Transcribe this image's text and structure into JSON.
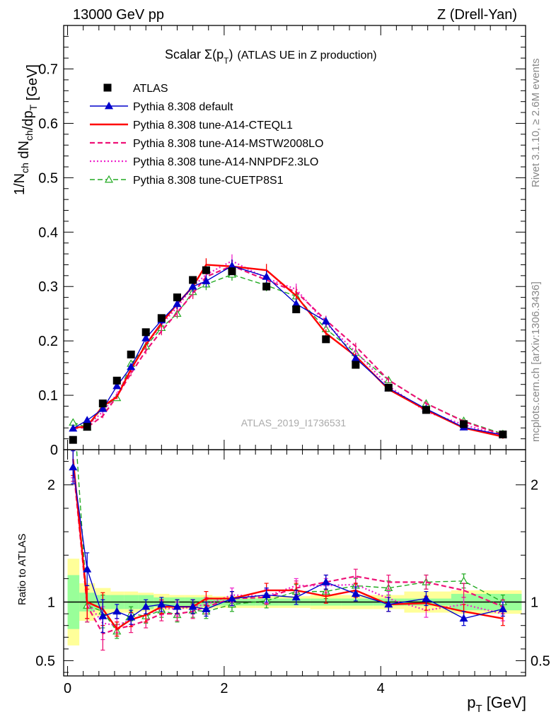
{
  "header": {
    "left": "13000 GeV pp",
    "right": "Z (Drell-Yan)"
  },
  "title": {
    "main": "Scalar Σ(p",
    "sub": "T",
    "close": ")",
    "rest": "(ATLAS UE in Z production)"
  },
  "side_labels": {
    "rivet": "Rivet 3.1.10, ≥ 2.6M events",
    "mcplots": "mcplots.cern.ch [arXiv:1306.3436]"
  },
  "watermark": "ATLAS_2019_I1736531",
  "axes": {
    "ylabel_main": "1/N_ch dN_ch/dp_T [GeV]",
    "ylabel_ratio": "Ratio to ATLAS",
    "xlabel": "p_T [GeV]"
  },
  "colors": {
    "data": "#000000",
    "default": "#0000cc",
    "cteql1": "#ff0000",
    "mstw": "#ee1177",
    "nnpdf": "#ee22cc",
    "cuetp": "#22aa22",
    "band_inner": "#99ff99",
    "band_outer": "#ffff99"
  },
  "chart_data": {
    "type": "line",
    "xlim": [
      -0.05,
      5.85
    ],
    "main": {
      "ylim": [
        0,
        0.78
      ],
      "yticks": [
        0,
        0.1,
        0.2,
        0.3,
        0.4,
        0.5,
        0.6,
        0.7
      ],
      "ytick_labels": [
        "0",
        "0.1",
        "0.2",
        "0.3",
        "0.4",
        "0.5",
        "0.6",
        "0.7"
      ]
    },
    "ratio": {
      "ylim": [
        0.37,
        2.3
      ],
      "yticks": [
        0.5,
        1,
        2
      ],
      "ytick_labels": [
        "0.5",
        "1",
        "2"
      ]
    },
    "xticks": [
      0,
      2,
      4
    ],
    "xtick_labels": [
      "0",
      "2",
      "4"
    ],
    "bin_edges": [
      0.0,
      0.15,
      0.35,
      0.55,
      0.72,
      0.9,
      1.1,
      1.3,
      1.5,
      1.7,
      1.85,
      2.4,
      2.7,
      3.1,
      3.5,
      3.9,
      4.3,
      4.9,
      5.3,
      5.8
    ],
    "x": [
      0.07,
      0.25,
      0.45,
      0.63,
      0.81,
      1.0,
      1.2,
      1.4,
      1.6,
      1.77,
      2.1,
      2.54,
      2.92,
      3.3,
      3.68,
      4.1,
      4.58,
      5.06,
      5.56
    ],
    "data_series": {
      "name": "ATLAS",
      "values": [
        0.018,
        0.042,
        0.085,
        0.127,
        0.175,
        0.216,
        0.242,
        0.28,
        0.312,
        0.33,
        0.328,
        0.3,
        0.258,
        0.203,
        0.156,
        0.114,
        0.073,
        0.047,
        0.028
      ]
    },
    "series": [
      {
        "name": "Pythia 8.308 default",
        "key": "default",
        "style": "solid",
        "marker": "triangle-filled",
        "values": [
          0.039,
          0.054,
          0.075,
          0.117,
          0.152,
          0.205,
          0.238,
          0.268,
          0.3,
          0.31,
          0.338,
          0.318,
          0.268,
          0.236,
          0.168,
          0.113,
          0.075,
          0.041,
          0.027
        ]
      },
      {
        "name": "Pythia 8.308 tune-A14-CTEQL1",
        "key": "cteql1",
        "style": "solid",
        "marker": "none",
        "values": [
          0.04,
          0.043,
          0.08,
          0.097,
          0.148,
          0.193,
          0.233,
          0.268,
          0.3,
          0.34,
          0.337,
          0.33,
          0.283,
          0.214,
          0.172,
          0.111,
          0.073,
          0.04,
          0.024
        ]
      },
      {
        "name": "Pythia 8.308 tune-A14-MSTW2008LO",
        "key": "mstw",
        "style": "dashed",
        "marker": "none",
        "values": [
          0.039,
          0.041,
          0.062,
          0.098,
          0.14,
          0.182,
          0.218,
          0.252,
          0.287,
          0.318,
          0.338,
          0.312,
          0.29,
          0.238,
          0.19,
          0.128,
          0.085,
          0.052,
          0.027
        ]
      },
      {
        "name": "Pythia 8.308 tune-A14-NNPDF2.3LO",
        "key": "nnpdf",
        "style": "dotted",
        "marker": "none",
        "values": [
          0.04,
          0.043,
          0.07,
          0.102,
          0.148,
          0.192,
          0.23,
          0.262,
          0.3,
          0.322,
          0.347,
          0.315,
          0.295,
          0.232,
          0.18,
          0.117,
          0.07,
          0.046,
          0.025
        ]
      },
      {
        "name": "Pythia 8.308 tune-CUETP8S1",
        "key": "cuetp",
        "style": "dashed",
        "marker": "triangle-open",
        "values": [
          0.05,
          0.041,
          0.078,
          0.095,
          0.158,
          0.19,
          0.224,
          0.25,
          0.29,
          0.304,
          0.322,
          0.302,
          0.282,
          0.222,
          0.178,
          0.128,
          0.085,
          0.053,
          0.029
        ]
      }
    ],
    "ratios": {
      "default": [
        2.15,
        1.28,
        0.88,
        0.92,
        0.87,
        0.96,
        0.98,
        0.96,
        0.96,
        0.94,
        1.03,
        1.06,
        1.04,
        1.17,
        1.07,
        0.98,
        1.03,
        0.86,
        0.94
      ],
      "cteql1": [
        2.22,
        1.0,
        0.94,
        0.77,
        0.85,
        0.89,
        0.96,
        0.96,
        0.96,
        1.03,
        1.03,
        1.1,
        1.1,
        1.05,
        1.1,
        0.98,
        0.99,
        0.92,
        0.86
      ],
      "mstw": [
        2.17,
        0.97,
        0.73,
        0.77,
        0.8,
        0.84,
        0.9,
        0.9,
        0.92,
        0.96,
        1.03,
        1.04,
        1.12,
        1.17,
        1.22,
        1.17,
        1.17,
        1.1,
        0.96
      ],
      "nnpdf": [
        2.2,
        1.0,
        0.82,
        0.8,
        0.85,
        0.89,
        0.95,
        0.94,
        0.96,
        0.98,
        1.06,
        1.05,
        1.14,
        1.14,
        1.15,
        1.03,
        0.93,
        0.98,
        0.9
      ],
      "cuetp": [
        2.75,
        0.97,
        0.92,
        0.75,
        0.9,
        0.88,
        0.93,
        0.89,
        0.93,
        0.92,
        0.98,
        1.01,
        1.09,
        1.09,
        1.14,
        1.12,
        1.17,
        1.18,
        1.0
      ]
    },
    "ratio_band": {
      "inner": [
        0.23,
        0.08,
        0.06,
        0.06,
        0.06,
        0.06,
        0.04,
        0.04,
        0.04,
        0.04,
        0.03,
        0.03,
        0.03,
        0.03,
        0.03,
        0.03,
        0.03,
        0.07,
        0.07
      ],
      "outer": [
        0.37,
        0.16,
        0.12,
        0.09,
        0.09,
        0.08,
        0.07,
        0.06,
        0.06,
        0.06,
        0.05,
        0.05,
        0.05,
        0.06,
        0.06,
        0.06,
        0.09,
        0.1,
        0.1
      ]
    }
  }
}
